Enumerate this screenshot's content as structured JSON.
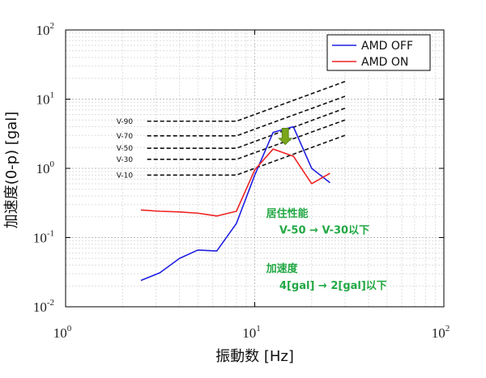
{
  "chart_data": {
    "type": "line",
    "title": "",
    "xlabel": "振動数 [Hz]",
    "ylabel": "加速度(0-p) [gal]",
    "xscale": "log",
    "yscale": "log",
    "xlim": [
      1,
      100
    ],
    "ylim": [
      0.01,
      100
    ],
    "x_ticks": [
      {
        "value": 1,
        "base": "10",
        "exp": "0"
      },
      {
        "value": 10,
        "base": "10",
        "exp": "1"
      },
      {
        "value": 100,
        "base": "10",
        "exp": "2"
      }
    ],
    "y_ticks": [
      {
        "value": 0.01,
        "base": "10",
        "exp": "-2"
      },
      {
        "value": 0.1,
        "base": "10",
        "exp": "-1"
      },
      {
        "value": 1,
        "base": "10",
        "exp": "0"
      },
      {
        "value": 10,
        "base": "10",
        "exp": "1"
      },
      {
        "value": 100,
        "base": "10",
        "exp": "2"
      }
    ],
    "grid": true,
    "legend_position": "top-right",
    "series": [
      {
        "name": "AMD OFF",
        "color": "#1f1fe0",
        "x": [
          2.5,
          3.15,
          4.0,
          5.0,
          6.3,
          8.0,
          10.0,
          12.5,
          16.0,
          20.0,
          25.0
        ],
        "y": [
          0.024,
          0.031,
          0.05,
          0.066,
          0.064,
          0.16,
          0.8,
          3.3,
          4.0,
          1.0,
          0.62
        ]
      },
      {
        "name": "AMD ON",
        "color": "#ee2222",
        "x": [
          2.5,
          3.15,
          4.0,
          5.0,
          6.3,
          8.0,
          10.0,
          12.5,
          16.0,
          20.0,
          25.0
        ],
        "y": [
          0.25,
          0.24,
          0.235,
          0.225,
          0.205,
          0.24,
          0.95,
          1.9,
          1.5,
          0.6,
          0.85
        ]
      }
    ],
    "reference_curves": [
      {
        "name": "V-90",
        "x": [
          2.7,
          8.0,
          30.0
        ],
        "y": [
          4.8,
          4.8,
          18.0
        ]
      },
      {
        "name": "V-70",
        "x": [
          2.7,
          8.0,
          30.0
        ],
        "y": [
          2.95,
          2.95,
          11.0
        ]
      },
      {
        "name": "V-50",
        "x": [
          2.7,
          8.0,
          30.0
        ],
        "y": [
          1.95,
          1.95,
          7.4
        ]
      },
      {
        "name": "V-30",
        "x": [
          2.7,
          8.0,
          30.0
        ],
        "y": [
          1.35,
          1.35,
          5.0
        ]
      },
      {
        "name": "V-10",
        "x": [
          2.7,
          8.0,
          30.0
        ],
        "y": [
          0.8,
          0.8,
          3.0
        ]
      }
    ],
    "arrow": {
      "x": 14.5,
      "y_from": 3.8,
      "y_to": 2.2,
      "color": "#7aa61c"
    },
    "annotations": [
      {
        "text": "居住性能",
        "x": 11.5,
        "y": 0.2
      },
      {
        "text": "V-50 → V-30以下",
        "x": 13.5,
        "y": 0.115
      },
      {
        "text": "加速度",
        "x": 11.5,
        "y": 0.032
      },
      {
        "text": "4[gal] → 2[gal]以下",
        "x": 13.5,
        "y": 0.018
      }
    ],
    "annotation_color": "#22a844"
  }
}
